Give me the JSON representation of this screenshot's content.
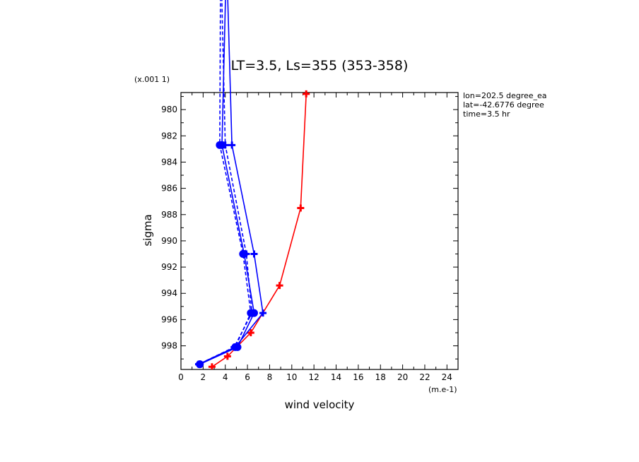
{
  "chart_data": {
    "type": "line",
    "title": "LT=3.5, Ls=355 (353-358)",
    "xlabel": "wind velocity",
    "ylabel": "sigma",
    "x_unit_label": "(m.e-1)",
    "y_unit_label": "(x.001 1)",
    "xlim": [
      0,
      25
    ],
    "ylim": [
      999.8,
      978.7
    ],
    "y_inverted": true,
    "x_ticks": [
      0,
      2,
      4,
      6,
      8,
      10,
      12,
      14,
      16,
      18,
      20,
      22,
      24
    ],
    "x_tick_labels": [
      "0",
      "2",
      "4",
      "6",
      "8",
      "10",
      "12",
      "14",
      "16",
      "18",
      "20",
      "22",
      "24"
    ],
    "y_ticks": [
      980,
      982,
      984,
      986,
      988,
      990,
      992,
      994,
      996,
      998
    ],
    "y_tick_labels": [
      "980",
      "982",
      "984",
      "986",
      "988",
      "990",
      "992",
      "994",
      "996",
      "998"
    ],
    "grid": false,
    "annotations": [
      "lon=202.5 degree_ea",
      "lat=-42.6776 degree",
      "time=3.5 hr"
    ],
    "series": [
      {
        "color": "#ff0000",
        "style": "solid",
        "marker": "plus",
        "x": [
          11.3,
          10.8,
          8.9,
          6.3,
          4.2,
          2.8
        ],
        "y": [
          978.8,
          987.5,
          993.4,
          997.0,
          998.8,
          999.6
        ]
      },
      {
        "color": "#0000ff",
        "style": "solid",
        "marker": "plus",
        "x": [
          4.0,
          4.6,
          6.6,
          7.4,
          4.9,
          1.6
        ],
        "y": [
          965.0,
          982.7,
          991.0,
          995.5,
          998.1,
          999.4
        ]
      },
      {
        "color": "#0000ff",
        "style": "solid",
        "marker": "circle",
        "x": [
          4.2,
          3.7,
          5.7,
          6.6,
          5.1,
          1.7
        ],
        "y": [
          965.0,
          982.7,
          991.0,
          995.5,
          998.1,
          999.4
        ]
      },
      {
        "color": "#0000ff",
        "style": "dashed",
        "marker": "plus",
        "x": [
          3.5,
          4.0,
          5.9,
          6.4,
          4.8,
          1.6
        ],
        "y": [
          965.0,
          982.7,
          991.0,
          995.5,
          998.1,
          999.4
        ]
      },
      {
        "color": "#0000ff",
        "style": "dashed",
        "marker": "circle",
        "x": [
          3.6,
          3.5,
          5.6,
          6.3,
          4.9,
          1.7
        ],
        "y": [
          965.0,
          982.7,
          991.0,
          995.5,
          998.1,
          999.4
        ]
      }
    ]
  }
}
